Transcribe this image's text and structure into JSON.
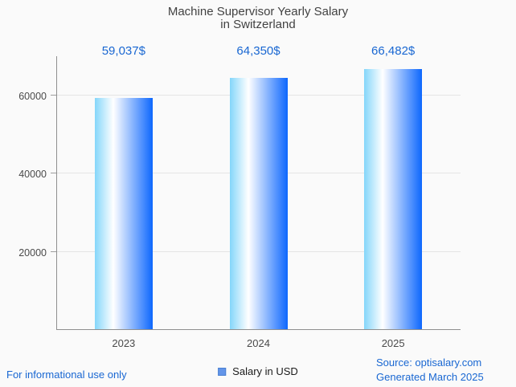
{
  "title": {
    "line1": "Machine Supervisor Yearly Salary",
    "line2": "in Switzerland"
  },
  "chart_data": {
    "type": "bar",
    "title": "Machine Supervisor Yearly Salary in Switzerland",
    "categories": [
      "2023",
      "2024",
      "2025"
    ],
    "values": [
      59037,
      64350,
      66482
    ],
    "value_labels": [
      "59,037$",
      "64,350$",
      "66,482$"
    ],
    "series_name": "Salary in USD",
    "xlabel": "",
    "ylabel": "",
    "ylim": [
      0,
      70000
    ],
    "yticks": [
      20000,
      40000,
      60000
    ],
    "ytick_labels": [
      "20000",
      "40000",
      "60000"
    ],
    "grid": true,
    "legend_position": "bottom"
  },
  "legend": {
    "label": "Salary in USD"
  },
  "footer": {
    "left": "For informational use only",
    "source": "Source: optisalary.com",
    "generated": "Generated March 2025"
  },
  "colors": {
    "background": "#fafafa",
    "accent_blue_text": "#1967d2",
    "title_text": "#424242",
    "axis_text": "#4a4a4a",
    "axis_line": "#8f8f8f",
    "gridline": "#e4e4e4",
    "bar_gradient_left": "#84d6fa",
    "bar_gradient_mid": "#ffffff",
    "bar_gradient_right": "#0d67fd",
    "legend_swatch_fill": "#6395e9",
    "legend_swatch_border": "#4a80d2"
  }
}
